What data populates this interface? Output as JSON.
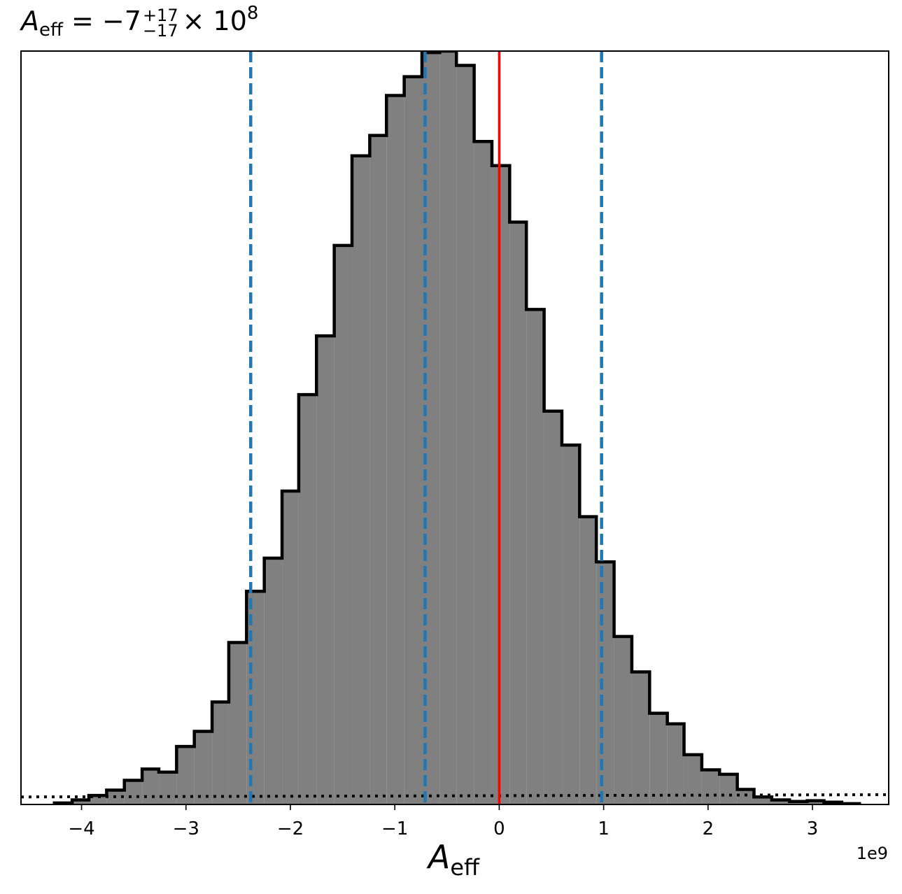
{
  "title": {
    "symbol": "A",
    "subscript": "eff",
    "equals": " = −7",
    "sup": "+17",
    "sub": "−17",
    "times": "× 10",
    "exponent": "8"
  },
  "offset_label": "1e9",
  "chart_data": {
    "type": "histogram",
    "title": "A_eff = -7 (+17/-17) × 10^8",
    "xlabel": "A_eff",
    "ylabel": "",
    "x_scale_factor": "1e9",
    "xlim": [
      -4.58,
      3.73
    ],
    "ylim": [
      0,
      1.0
    ],
    "xticks": [
      -4,
      -3,
      -2,
      -1,
      0,
      1,
      2,
      3
    ],
    "xtick_labels": [
      "−4",
      "−3",
      "−2",
      "−1",
      "0",
      "1",
      "2",
      "3"
    ],
    "yticks_shown": false,
    "grid": false,
    "fill_color": "#808080",
    "edge_color": "#000000",
    "bin_edges": [
      -4.26,
      -4.09,
      -3.93,
      -3.76,
      -3.59,
      -3.42,
      -3.26,
      -3.09,
      -2.92,
      -2.75,
      -2.59,
      -2.42,
      -2.25,
      -2.08,
      -1.92,
      -1.75,
      -1.58,
      -1.41,
      -1.24,
      -1.08,
      -0.91,
      -0.74,
      -0.57,
      -0.41,
      -0.24,
      -0.07,
      0.1,
      0.26,
      0.43,
      0.6,
      0.77,
      0.93,
      1.1,
      1.27,
      1.44,
      1.61,
      1.77,
      1.94,
      2.11,
      2.28,
      2.44,
      2.61,
      2.78,
      2.95,
      3.11,
      3.28,
      3.45
    ],
    "counts": [
      0.002,
      0.006,
      0.012,
      0.019,
      0.032,
      0.047,
      0.043,
      0.077,
      0.097,
      0.136,
      0.215,
      0.283,
      0.327,
      0.416,
      0.544,
      0.622,
      0.742,
      0.861,
      0.888,
      0.941,
      0.966,
      0.998,
      1.0,
      0.981,
      0.88,
      0.848,
      0.773,
      0.657,
      0.522,
      0.477,
      0.382,
      0.322,
      0.223,
      0.176,
      0.121,
      0.107,
      0.066,
      0.046,
      0.04,
      0.02,
      0.01,
      0.006,
      0.004,
      0.005,
      0.003,
      0.001
    ],
    "vertical_lines": [
      {
        "x": -2.38,
        "style": "dashed",
        "color": "#1f77b4"
      },
      {
        "x": -0.71,
        "style": "dashed",
        "color": "#1f77b4"
      },
      {
        "x": 0.98,
        "style": "dashed",
        "color": "#1f77b4"
      },
      {
        "x": 0.0,
        "style": "solid",
        "color": "#ff0000"
      }
    ],
    "dotted_baseline": {
      "y_start": 0.01,
      "y_end": 0.013,
      "color": "#000000"
    }
  }
}
